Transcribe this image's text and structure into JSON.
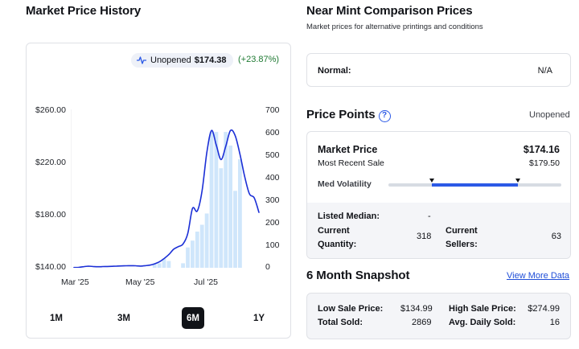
{
  "left": {
    "title": "Market Price History",
    "badge": {
      "icon": "pulse-icon",
      "condition": "Unopened",
      "price": "$174.38",
      "change": "(+23.87%)"
    },
    "ranges": [
      {
        "label": "1M",
        "active": false
      },
      {
        "label": "3M",
        "active": false
      },
      {
        "label": "6M",
        "active": true
      },
      {
        "label": "1Y",
        "active": false
      }
    ]
  },
  "chart_data": {
    "type": "line",
    "xlabels": [
      "Mar '25",
      "May '25",
      "Jul '25"
    ],
    "y_left_ticks": [
      "$260.00",
      "$220.00",
      "$180.00",
      "$140.00"
    ],
    "y_left_range": [
      140,
      260
    ],
    "y_right_ticks": [
      "700",
      "600",
      "500",
      "400",
      "300",
      "200",
      "100",
      "0"
    ],
    "y_right_range": [
      0,
      700
    ],
    "series": [
      {
        "role": "price-line",
        "axis": "left",
        "color": "#1b2fd6",
        "points": [
          [
            0,
            140.2
          ],
          [
            1,
            140.3
          ],
          [
            2,
            140.8
          ],
          [
            3,
            141.2
          ],
          [
            4,
            141.0
          ],
          [
            5,
            140.8
          ],
          [
            6,
            140.9
          ],
          [
            7,
            141.0
          ],
          [
            8,
            141.1
          ],
          [
            9,
            141.3
          ],
          [
            10,
            141.4
          ],
          [
            11,
            141.5
          ],
          [
            12,
            141.6
          ],
          [
            13,
            141.5
          ],
          [
            14,
            141.3
          ],
          [
            15,
            141.6
          ],
          [
            16,
            142.0
          ],
          [
            17,
            143.0
          ],
          [
            18,
            144.5
          ],
          [
            19,
            147.0
          ],
          [
            20,
            150.0
          ],
          [
            21,
            154.0
          ],
          [
            22,
            156.0
          ],
          [
            23,
            158.0
          ],
          [
            24,
            166.0
          ],
          [
            25,
            185.0
          ],
          [
            26,
            183.0
          ],
          [
            27,
            198.0
          ],
          [
            28,
            227.0
          ],
          [
            29,
            244.0
          ],
          [
            30,
            233.0
          ],
          [
            31,
            222.0
          ],
          [
            32,
            232.0
          ],
          [
            33,
            244.0
          ],
          [
            34,
            240.0
          ],
          [
            35,
            226.0
          ],
          [
            36,
            209.0
          ],
          [
            37,
            196.0
          ],
          [
            38,
            193.0
          ],
          [
            39,
            182.0
          ]
        ]
      },
      {
        "role": "volume-bars",
        "axis": "right",
        "color": "#cfe6fb",
        "values": [
          0,
          0,
          0,
          0,
          0,
          0,
          0,
          0,
          0,
          0,
          0,
          0,
          0,
          0,
          0,
          0,
          0,
          20,
          20,
          40,
          30,
          0,
          0,
          20,
          90,
          120,
          160,
          190,
          240,
          600,
          600,
          440,
          600,
          540,
          340,
          480,
          0,
          0,
          0,
          0
        ]
      }
    ],
    "grid": false
  },
  "right": {
    "comparison": {
      "title": "Near Mint Comparison Prices",
      "subtitle": "Market prices for alternative printings and conditions",
      "row": {
        "label": "Normal:",
        "value": "N/A"
      }
    },
    "price_points": {
      "title": "Price Points",
      "help_icon": "question-circle-icon",
      "condition": "Unopened",
      "market_price_label": "Market Price",
      "market_price": "$174.16",
      "recent_sale_label": "Most Recent Sale",
      "recent_sale": "$179.50",
      "volatility_label": "Med Volatility",
      "volatility_range": [
        0.25,
        0.75
      ],
      "listed_median_label": "Listed Median:",
      "listed_median": "-",
      "current_quantity_label": "Current Quantity:",
      "current_quantity": "318",
      "current_sellers_label": "Current Sellers:",
      "current_sellers": "63"
    },
    "snapshot": {
      "title": "6 Month Snapshot",
      "link": "View More Data",
      "low_label": "Low Sale Price:",
      "low": "$134.99",
      "high_label": "High Sale Price:",
      "high": "$274.99",
      "sold_label": "Total Sold:",
      "sold": "2869",
      "daily_label": "Avg. Daily Sold:",
      "daily": "16"
    }
  }
}
